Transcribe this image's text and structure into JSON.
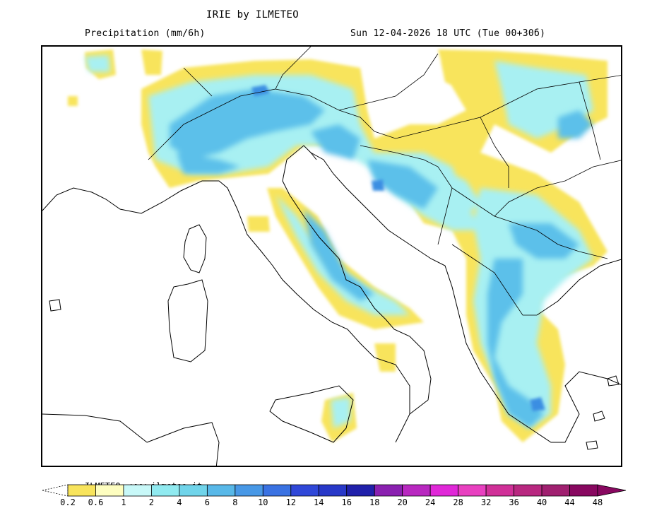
{
  "header": {
    "title": "IRIE by ILMETEO",
    "parameter": "Precipitation (mm/6h)",
    "valid_time": "Sun 12-04-2026 18 UTC (Tue 00+30б)"
  },
  "map": {
    "region": "Italy and Balkans",
    "land_color": "#ffffff",
    "coastline_color": "#000000"
  },
  "legend": {
    "credit": "ILMETEO: www.ilmeteo.it",
    "unit": "mm/6h",
    "ticks": [
      "0.2",
      "0.6",
      "1",
      "2",
      "4",
      "6",
      "8",
      "10",
      "12",
      "14",
      "16",
      "18",
      "20",
      "24",
      "28",
      "32",
      "36",
      "40",
      "44",
      "48"
    ],
    "colors": [
      "#f8e45c",
      "#fefec0",
      "#c8f8f8",
      "#90eaf0",
      "#70d4ea",
      "#58b8e8",
      "#4898e6",
      "#3a72e2",
      "#3048d8",
      "#2838c8",
      "#2020aa",
      "#8a20b0",
      "#b828c0",
      "#e028d8",
      "#e840c0",
      "#d03098",
      "#b82880",
      "#a02070",
      "#880860"
    ]
  }
}
